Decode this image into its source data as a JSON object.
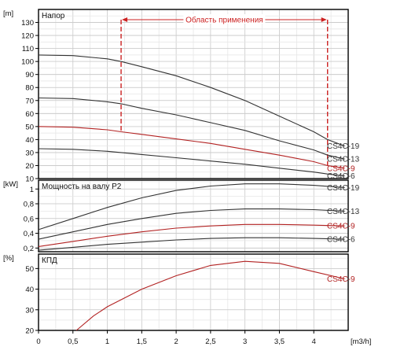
{
  "chart_data": [
    {
      "type": "line",
      "title": "Напор",
      "ylabel": "[m]",
      "xlim": [
        0,
        4.5
      ],
      "ylim": [
        10,
        140
      ],
      "yticks": [
        10,
        20,
        30,
        40,
        50,
        60,
        70,
        80,
        90,
        100,
        110,
        120,
        130
      ],
      "grid": true,
      "application_range": {
        "label": "Область применения",
        "x": [
          1.2,
          4.2
        ]
      },
      "series": [
        {
          "name": "CS4C-19",
          "color": "#333333",
          "x": [
            0,
            0.5,
            1.0,
            1.2,
            1.5,
            2.0,
            2.5,
            3.0,
            3.5,
            4.0,
            4.2,
            4.45
          ],
          "y": [
            105,
            104.5,
            102,
            100,
            96,
            89,
            80,
            70,
            58,
            46,
            40,
            35
          ]
        },
        {
          "name": "CS4C-13",
          "color": "#333333",
          "x": [
            0,
            0.5,
            1.0,
            1.2,
            1.5,
            2.0,
            2.5,
            3.0,
            3.5,
            4.0,
            4.2,
            4.45
          ],
          "y": [
            72,
            71.5,
            69,
            67.5,
            64,
            59,
            53,
            47,
            39,
            32,
            28,
            25
          ]
        },
        {
          "name": "CS4C-9",
          "color": "#b22222",
          "x": [
            0,
            0.5,
            1.0,
            1.2,
            1.5,
            2.0,
            2.5,
            3.0,
            3.5,
            4.0,
            4.2,
            4.45
          ],
          "y": [
            50,
            49.5,
            47.5,
            46,
            44,
            40.5,
            37,
            32.5,
            28,
            23,
            20,
            18
          ]
        },
        {
          "name": "CS4C-6",
          "color": "#333333",
          "x": [
            0,
            0.5,
            1.0,
            1.2,
            1.5,
            2.0,
            2.5,
            3.0,
            3.5,
            4.0,
            4.2,
            4.45
          ],
          "y": [
            33,
            32.5,
            31,
            30,
            28.5,
            26,
            23.5,
            21,
            18,
            15,
            13.5,
            12
          ]
        }
      ]
    },
    {
      "type": "line",
      "title": "Мощность на валу P2",
      "ylabel": "[kW]",
      "xlim": [
        0,
        4.5
      ],
      "ylim": [
        0.15,
        1.12
      ],
      "yticks": [
        0.2,
        0.4,
        0.6,
        0.8,
        1
      ],
      "yticklabels": [
        "0,2",
        "0,4",
        "0,6",
        "0,8",
        "1"
      ],
      "grid": true,
      "series": [
        {
          "name": "CS4C-19",
          "color": "#333333",
          "x": [
            0,
            0.5,
            1.0,
            1.5,
            2.0,
            2.5,
            3.0,
            3.5,
            4.0,
            4.45
          ],
          "y": [
            0.45,
            0.6,
            0.75,
            0.88,
            0.98,
            1.04,
            1.07,
            1.07,
            1.05,
            1.02
          ]
        },
        {
          "name": "CS4C-13",
          "color": "#333333",
          "x": [
            0,
            0.5,
            1.0,
            1.5,
            2.0,
            2.5,
            3.0,
            3.5,
            4.0,
            4.45
          ],
          "y": [
            0.32,
            0.42,
            0.52,
            0.6,
            0.67,
            0.71,
            0.73,
            0.73,
            0.72,
            0.7
          ]
        },
        {
          "name": "CS4C-9",
          "color": "#b22222",
          "x": [
            0,
            0.5,
            1.0,
            1.5,
            2.0,
            2.5,
            3.0,
            3.5,
            4.0,
            4.45
          ],
          "y": [
            0.22,
            0.29,
            0.36,
            0.42,
            0.47,
            0.5,
            0.52,
            0.52,
            0.51,
            0.5
          ]
        },
        {
          "name": "CS4C-6",
          "color": "#333333",
          "x": [
            0,
            0.5,
            1.0,
            1.5,
            2.0,
            2.5,
            3.0,
            3.5,
            4.0,
            4.45
          ],
          "y": [
            0.17,
            0.21,
            0.25,
            0.28,
            0.31,
            0.33,
            0.34,
            0.34,
            0.33,
            0.32
          ]
        }
      ]
    },
    {
      "type": "line",
      "title": "КПД",
      "ylabel": "[%]",
      "xlabel": "[m3/h]",
      "xlim": [
        0,
        4.5
      ],
      "ylim": [
        20,
        57
      ],
      "yticks": [
        20,
        30,
        40,
        50
      ],
      "xticks": [
        0,
        0.5,
        1,
        1.5,
        2,
        2.5,
        3,
        3.5,
        4
      ],
      "xticklabels": [
        "0",
        "0,5",
        "1",
        "1,5",
        "2",
        "2,5",
        "3",
        "3,5",
        "4"
      ],
      "grid": true,
      "series": [
        {
          "name": "CS4C-9",
          "color": "#b22222",
          "x": [
            0.55,
            0.8,
            1.0,
            1.5,
            2.0,
            2.5,
            3.0,
            3.5,
            4.0,
            4.45
          ],
          "y": [
            20,
            27,
            31.5,
            40,
            46.5,
            51.5,
            53.5,
            52.5,
            48.5,
            45
          ]
        }
      ]
    }
  ]
}
